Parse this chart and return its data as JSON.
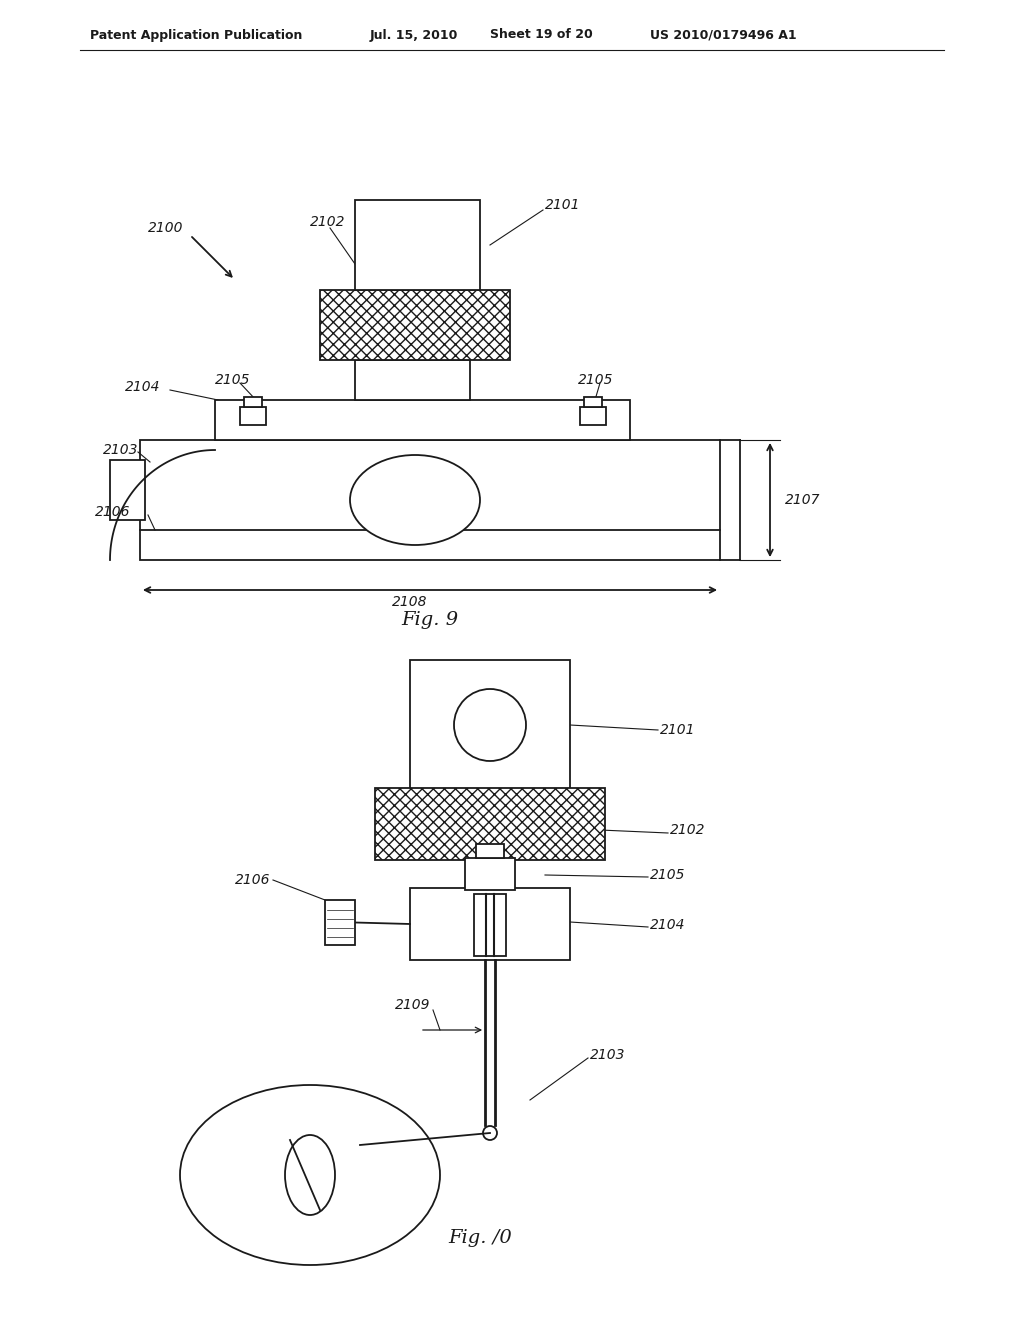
{
  "bg_color": "#ffffff",
  "header_line1": "Patent Application Publication",
  "header_line2": "Jul. 15, 2010",
  "header_line3": "Sheet 19 of 20",
  "header_line4": "US 2010/0179496 A1",
  "fig9_label": "Fig. 9",
  "fig10_label": "Fig. /0",
  "dark": "#1a1a1a"
}
